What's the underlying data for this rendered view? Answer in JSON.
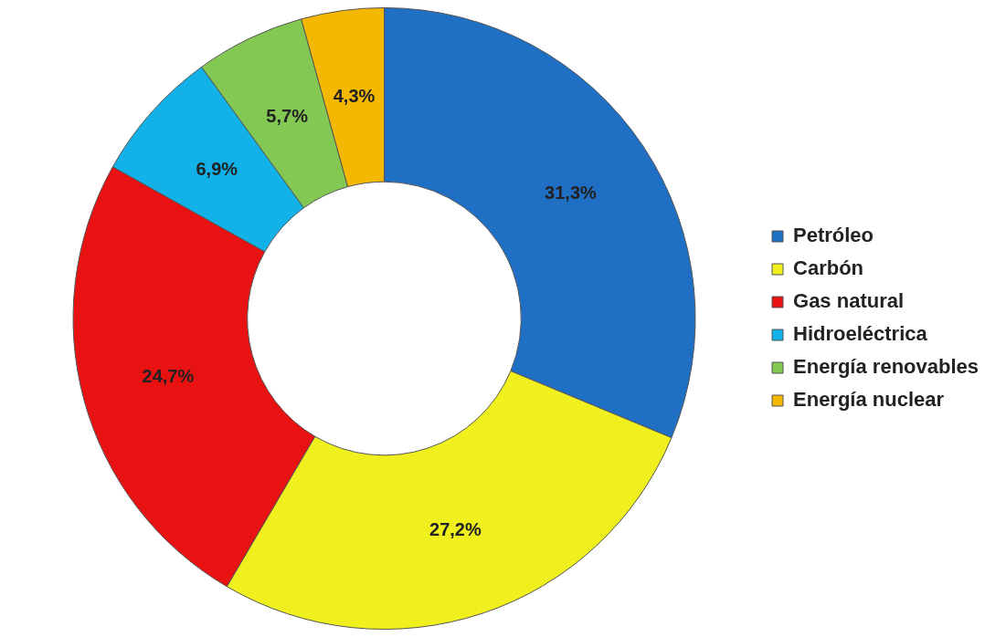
{
  "chart_data": {
    "type": "donut",
    "categories": [
      "Petróleo",
      "Carbón",
      "Gas natural",
      "Hidroeléctrica",
      "Energía renovables",
      "Energía nuclear"
    ],
    "values": [
      31.3,
      27.2,
      24.7,
      6.9,
      5.7,
      4.3
    ],
    "colors": [
      "#1f6fc5",
      "#f0f01e",
      "#e81212",
      "#12b2e8",
      "#82c852",
      "#f5b800"
    ],
    "value_labels": [
      "31,3%",
      "27,2%",
      "24,7%",
      "6,9%",
      "5,7%",
      "4,3%"
    ],
    "legend": "right"
  }
}
